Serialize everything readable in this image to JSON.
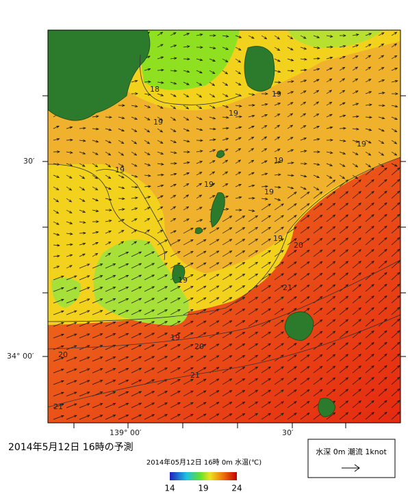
{
  "map": {
    "lat_labels": [
      "30′",
      "34° 00′"
    ],
    "lon_labels": [
      "139° 00′",
      "30′"
    ],
    "contour_labels": [
      18,
      19,
      19,
      19,
      19,
      19,
      19,
      19,
      19,
      19,
      20,
      19,
      21,
      19,
      20,
      20,
      21,
      21
    ]
  },
  "caption": "2014年5月12日  16時の予測",
  "colorbar": {
    "title": "2014年05月12日 16時 0m 水温(℃)",
    "range": [
      14,
      24
    ],
    "ticks": [
      14,
      19,
      24
    ]
  },
  "legend": {
    "label": "水深 0m 潮流 1knot"
  }
}
